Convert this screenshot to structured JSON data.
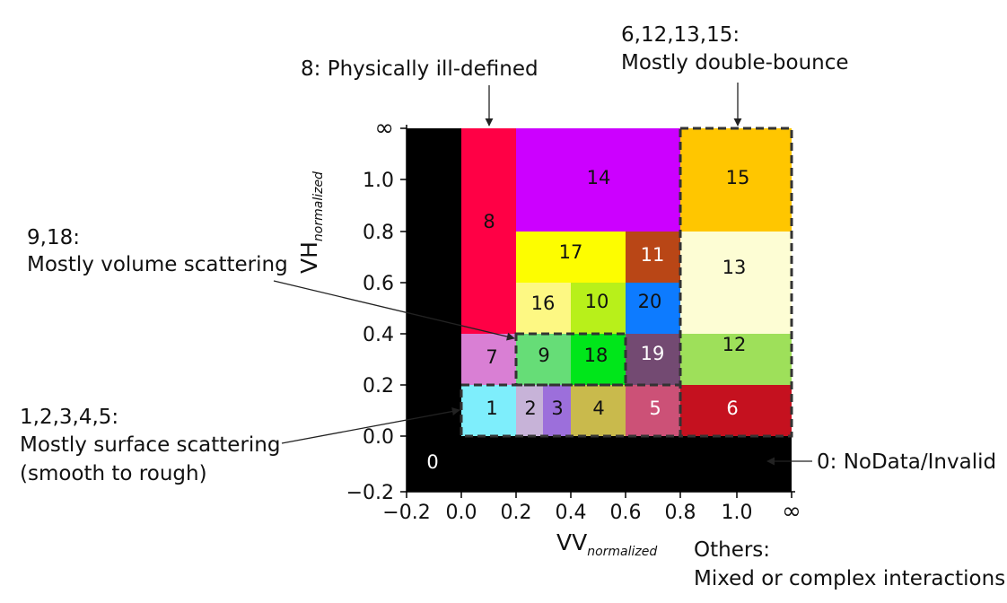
{
  "cells": [
    {
      "id": "c0",
      "label": "0",
      "color": "#000000",
      "text": "#ffffff"
    },
    {
      "id": "c1",
      "label": "1",
      "color": "#7eeefc",
      "text": "#111111"
    },
    {
      "id": "c2",
      "label": "2",
      "color": "#c7b3d8",
      "text": "#111111"
    },
    {
      "id": "c3",
      "label": "3",
      "color": "#9c6fdb",
      "text": "#111111"
    },
    {
      "id": "c4",
      "label": "4",
      "color": "#c9ba4c",
      "text": "#111111"
    },
    {
      "id": "c5",
      "label": "5",
      "color": "#cc5177",
      "text": "#ffffff"
    },
    {
      "id": "c6",
      "label": "6",
      "color": "#c5111f",
      "text": "#ffffff"
    },
    {
      "id": "c7",
      "label": "7",
      "color": "#d97fd4",
      "text": "#111111"
    },
    {
      "id": "c8",
      "label": "8",
      "color": "#ff0045",
      "text": "#111111"
    },
    {
      "id": "c9",
      "label": "9",
      "color": "#66dd77",
      "text": "#111111"
    },
    {
      "id": "c10",
      "label": "10",
      "color": "#b8f01a",
      "text": "#111111"
    },
    {
      "id": "c11",
      "label": "11",
      "color": "#b94616",
      "text": "#ffffff"
    },
    {
      "id": "c12",
      "label": "12",
      "color": "#9ee05a",
      "text": "#111111"
    },
    {
      "id": "c13",
      "label": "13",
      "color": "#fdfdd4",
      "text": "#111111"
    },
    {
      "id": "c14",
      "label": "14",
      "color": "#cc00ff",
      "text": "#111111"
    },
    {
      "id": "c15",
      "label": "15",
      "color": "#ffc600",
      "text": "#111111"
    },
    {
      "id": "c16",
      "label": "16",
      "color": "#fdf883",
      "text": "#111111"
    },
    {
      "id": "c17",
      "label": "17",
      "color": "#fdfd00",
      "text": "#111111"
    },
    {
      "id": "c18",
      "label": "18",
      "color": "#00e61a",
      "text": "#111111"
    },
    {
      "id": "c19",
      "label": "19",
      "color": "#734a72",
      "text": "#ffffff"
    },
    {
      "id": "c20",
      "label": "20",
      "color": "#0d7bff",
      "text": "#111111"
    }
  ],
  "axes": {
    "x_title": "VV",
    "x_sub": "normalized",
    "y_title": "VH",
    "y_sub": "normalized",
    "x_ticks": [
      "−0.2",
      "0.0",
      "0.2",
      "0.4",
      "0.6",
      "0.8",
      "1.0",
      "∞"
    ],
    "y_ticks": [
      "∞",
      "1.0",
      "0.8",
      "0.6",
      "0.4",
      "0.2",
      "0.0",
      "−0.2"
    ]
  },
  "annotations": {
    "ill_defined": "8: Physically ill-defined",
    "double_head": "6,12,13,15:",
    "double_body": "Mostly double-bounce",
    "volume_head": "9,18:",
    "volume_body": "Mostly volume scattering",
    "surface_head": "1,2,3,4,5:",
    "surface_body1": "Mostly surface scattering",
    "surface_body2": "(smooth to rough)",
    "nodata": "0: NoData/Invalid",
    "others_head": "Others:",
    "others_body": "Mixed or complex interactions"
  }
}
